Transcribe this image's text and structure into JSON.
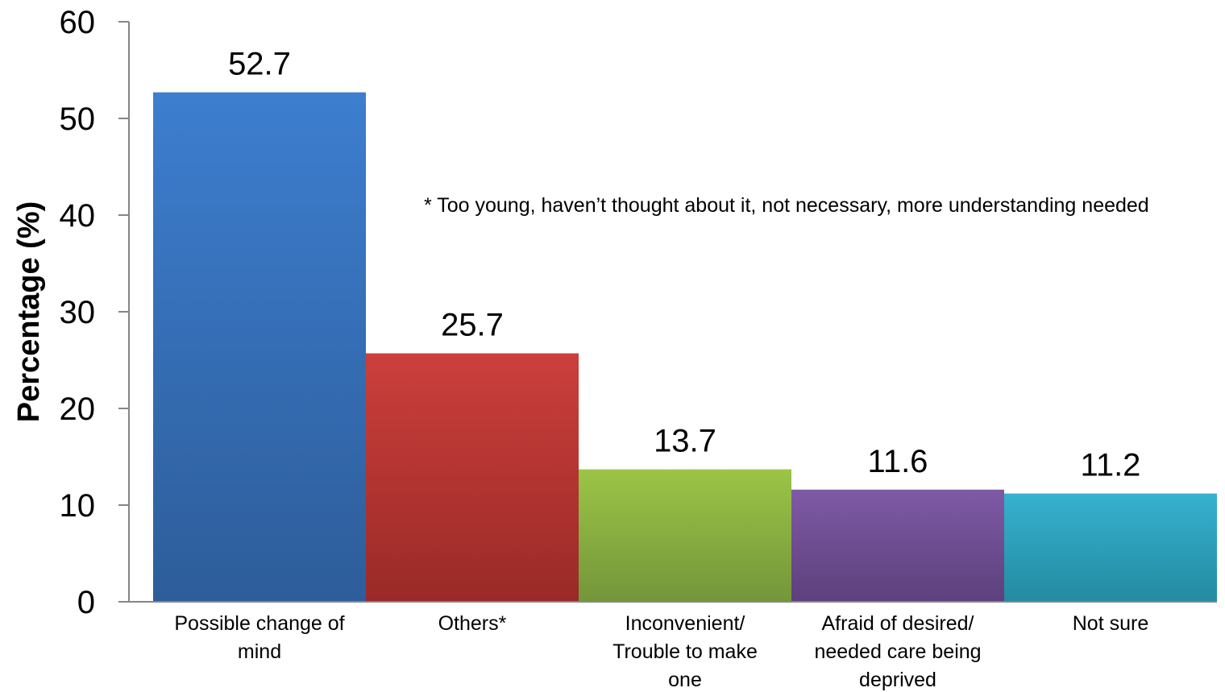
{
  "chart_data": {
    "type": "bar",
    "ylabel": "Percentage (%)",
    "xlabel": "",
    "ylim": [
      0,
      60
    ],
    "yticks": [
      "0",
      "10",
      "20",
      "30",
      "40",
      "50",
      "60"
    ],
    "grid": false,
    "legend": "none",
    "annotation": "* Too young, haven’t thought about it, not necessary, more understanding needed",
    "categories": [
      [
        "Possible change of",
        "mind"
      ],
      [
        "Others*"
      ],
      [
        "Inconvenient/",
        "Trouble to make",
        "one"
      ],
      [
        "Afraid of desired/",
        "needed care being",
        "deprived"
      ],
      [
        "Not sure"
      ]
    ],
    "values": [
      52.7,
      25.7,
      13.7,
      11.6,
      11.2
    ],
    "value_labels": [
      "52.7",
      "25.7",
      "13.7",
      "11.6",
      "11.2"
    ],
    "colors": [
      [
        "#3d7ecf",
        "#2d5d9a"
      ],
      [
        "#cc3f3c",
        "#992a27"
      ],
      [
        "#9cc446",
        "#73963a"
      ],
      [
        "#7e5aa5",
        "#5d407c"
      ],
      [
        "#36b2cf",
        "#248aa1"
      ]
    ]
  }
}
